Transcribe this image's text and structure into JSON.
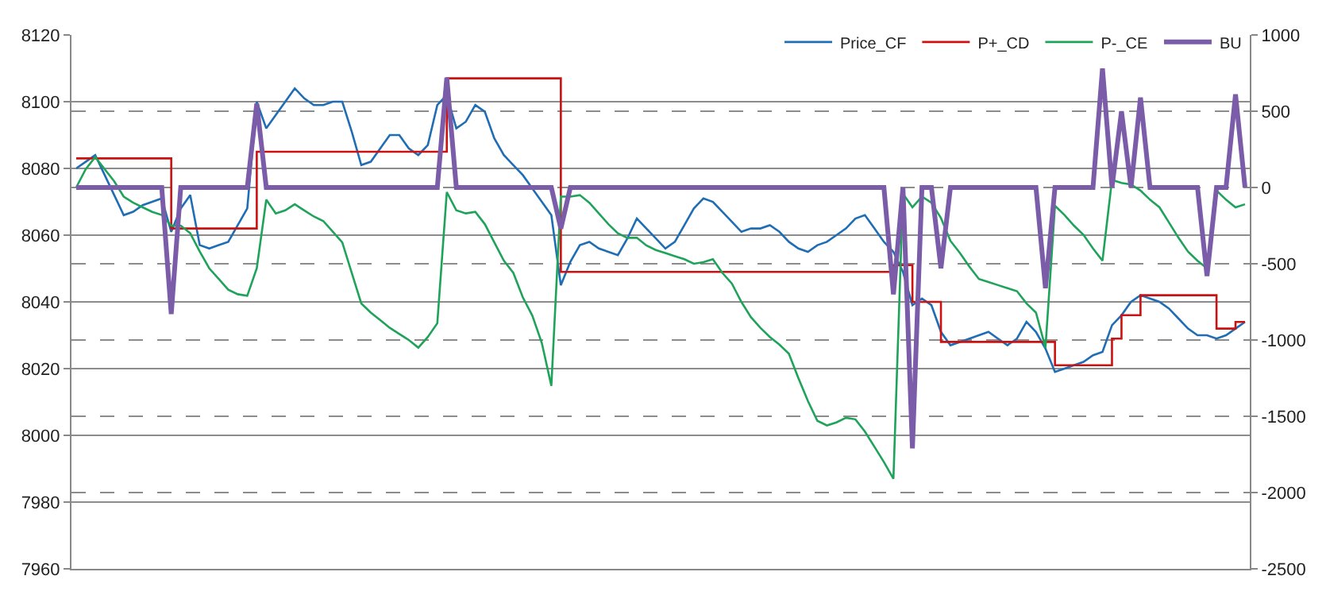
{
  "chart_data": {
    "type": "line",
    "categories": [
      null,
      null,
      null,
      null,
      null,
      null,
      null,
      null,
      null,
      null,
      null,
      null,
      null,
      null,
      null,
      null,
      null,
      null,
      null,
      null,
      null,
      null,
      null,
      null,
      null,
      null,
      null,
      null,
      null,
      null,
      null,
      null,
      null,
      null,
      null,
      null,
      null,
      null,
      null,
      null,
      null,
      null,
      null,
      null,
      null,
      null,
      null,
      null,
      null,
      null,
      null,
      null,
      null,
      null,
      null,
      null,
      null,
      null,
      null,
      null,
      null,
      null,
      null,
      null,
      null,
      null,
      null,
      null,
      null,
      null,
      null,
      null,
      null,
      null,
      null,
      null,
      null,
      null,
      null,
      null,
      null,
      null,
      null,
      null,
      null,
      null,
      null,
      null,
      null,
      null,
      null,
      null,
      null,
      null,
      null,
      null,
      null,
      null,
      null,
      null,
      null,
      null,
      null,
      null,
      null,
      null,
      null,
      null,
      null,
      null,
      null,
      null,
      null,
      null,
      null,
      null,
      null,
      null,
      null,
      null,
      null,
      null,
      null,
      null
    ],
    "series": [
      {
        "name": "Price_CF",
        "color": "#1f6db5",
        "values": [
          8080,
          8082,
          8084,
          8078,
          8072,
          8066,
          8067,
          8069,
          8070,
          8071,
          8061,
          8068,
          8072,
          8057,
          8056,
          8057,
          8058,
          8063,
          8068,
          8100,
          8092,
          8096,
          8100,
          8104,
          8101,
          8099,
          8099,
          8100,
          8100,
          8091,
          8081,
          8082,
          8086,
          8090,
          8090,
          8086,
          8084,
          8087,
          8099,
          8102,
          8092,
          8094,
          8099,
          8097,
          8089,
          8084,
          8081,
          8078,
          8074,
          8070,
          8066,
          8045,
          8052,
          8057,
          8058,
          8056,
          8055,
          8054,
          8059,
          8065,
          8062,
          8059,
          8056,
          8058,
          8063,
          8068,
          8071,
          8070,
          8067,
          8064,
          8061,
          8062,
          8062,
          8063,
          8061,
          8058,
          8056,
          8055,
          8057,
          8058,
          8060,
          8062,
          8065,
          8066,
          8062,
          8058,
          8055,
          8049,
          8039,
          8041,
          8039,
          8031,
          8027,
          8028,
          8029,
          8030,
          8031,
          8029,
          8027,
          8029,
          8034,
          8031,
          8026,
          8019,
          8020,
          8021,
          8022,
          8024,
          8025,
          8033,
          8036,
          8040,
          8042,
          8041,
          8040,
          8038,
          8035,
          8032,
          8030,
          8030,
          8029,
          8030,
          8032,
          8034
        ]
      },
      {
        "name": "P+_CD",
        "type": "step",
        "color": "#cc1111",
        "values": [
          8083,
          8083,
          8083,
          8083,
          8083,
          8083,
          8083,
          8083,
          8083,
          8083,
          8062,
          8062,
          8062,
          8062,
          8062,
          8062,
          8062,
          8062,
          8062,
          8085,
          8085,
          8085,
          8085,
          8085,
          8085,
          8085,
          8085,
          8085,
          8085,
          8085,
          8085,
          8085,
          8085,
          8085,
          8085,
          8085,
          8085,
          8085,
          8085,
          8107,
          8107,
          8107,
          8107,
          8107,
          8107,
          8107,
          8107,
          8107,
          8107,
          8107,
          8107,
          8049,
          8049,
          8049,
          8049,
          8049,
          8049,
          8049,
          8049,
          8049,
          8049,
          8049,
          8049,
          8049,
          8049,
          8049,
          8049,
          8049,
          8049,
          8049,
          8049,
          8049,
          8049,
          8049,
          8049,
          8049,
          8049,
          8049,
          8049,
          8049,
          8049,
          8049,
          8049,
          8049,
          8049,
          8049,
          8051,
          8051,
          8040,
          8040,
          8040,
          8028,
          8028,
          8028,
          8028,
          8028,
          8028,
          8028,
          8028,
          8028,
          8028,
          8028,
          8028,
          8021,
          8021,
          8021,
          8021,
          8021,
          8021,
          8029,
          8036,
          8036,
          8042,
          8042,
          8042,
          8042,
          8042,
          8042,
          8042,
          8042,
          8032,
          8032,
          8034,
          8034
        ]
      },
      {
        "name": "P-_CE",
        "axis": "y2",
        "color": "#1fa35a",
        "values": [
          0,
          120,
          200,
          120,
          40,
          -60,
          -100,
          -130,
          -160,
          -180,
          -250,
          -250,
          -300,
          -420,
          -530,
          -600,
          -670,
          -700,
          -710,
          -530,
          -80,
          -170,
          -150,
          -110,
          -150,
          -190,
          -220,
          -290,
          -360,
          -560,
          -760,
          -820,
          -870,
          -920,
          -960,
          -1000,
          -1050,
          -980,
          -890,
          -30,
          -150,
          -170,
          -160,
          -240,
          -360,
          -480,
          -560,
          -720,
          -840,
          -1020,
          -1300,
          -60,
          -60,
          -50,
          -100,
          -170,
          -240,
          -300,
          -330,
          -330,
          -380,
          -410,
          -430,
          -450,
          -470,
          -500,
          -490,
          -470,
          -560,
          -630,
          -750,
          -850,
          -920,
          -980,
          -1030,
          -1090,
          -1250,
          -1400,
          -1530,
          -1560,
          -1540,
          -1510,
          -1520,
          -1600,
          -1700,
          -1800,
          -1910,
          -40,
          -130,
          -60,
          -100,
          -200,
          -350,
          -430,
          -520,
          -600,
          -620,
          -640,
          -660,
          -680,
          -760,
          -820,
          -1050,
          -120,
          -180,
          -250,
          -310,
          -400,
          -480,
          50,
          30,
          20,
          -20,
          -80,
          -130,
          -230,
          -330,
          -420,
          -480,
          -530,
          -20,
          -80,
          -130,
          -110
        ]
      },
      {
        "name": "BU",
        "axis": "y2",
        "color": "#7a5ca8",
        "values": [
          0,
          0,
          0,
          0,
          0,
          0,
          0,
          0,
          0,
          0,
          -830,
          0,
          0,
          0,
          0,
          0,
          0,
          0,
          0,
          550,
          0,
          0,
          0,
          0,
          0,
          0,
          0,
          0,
          0,
          0,
          0,
          0,
          0,
          0,
          0,
          0,
          0,
          0,
          0,
          720,
          0,
          0,
          0,
          0,
          0,
          0,
          0,
          0,
          0,
          0,
          0,
          -270,
          0,
          0,
          0,
          0,
          0,
          0,
          0,
          0,
          0,
          0,
          0,
          0,
          0,
          0,
          0,
          0,
          0,
          0,
          0,
          0,
          0,
          0,
          0,
          0,
          0,
          0,
          0,
          0,
          0,
          0,
          0,
          0,
          0,
          0,
          -700,
          0,
          -1710,
          0,
          0,
          -530,
          0,
          0,
          0,
          0,
          0,
          0,
          0,
          0,
          0,
          0,
          -660,
          0,
          0,
          0,
          0,
          0,
          780,
          0,
          500,
          0,
          590,
          0,
          0,
          0,
          0,
          0,
          0,
          -580,
          0,
          0,
          610,
          0
        ]
      }
    ],
    "ylim": [
      7960,
      8120
    ],
    "yticks": [
      7960,
      7980,
      8000,
      8020,
      8040,
      8060,
      8080,
      8100,
      8120
    ],
    "y2lim": [
      -2500,
      1000
    ],
    "y2ticks": [
      -2500,
      -2000,
      -1500,
      -1000,
      -500,
      0,
      500,
      1000
    ],
    "grid": "y",
    "legend": "top right",
    "marker": "none"
  }
}
